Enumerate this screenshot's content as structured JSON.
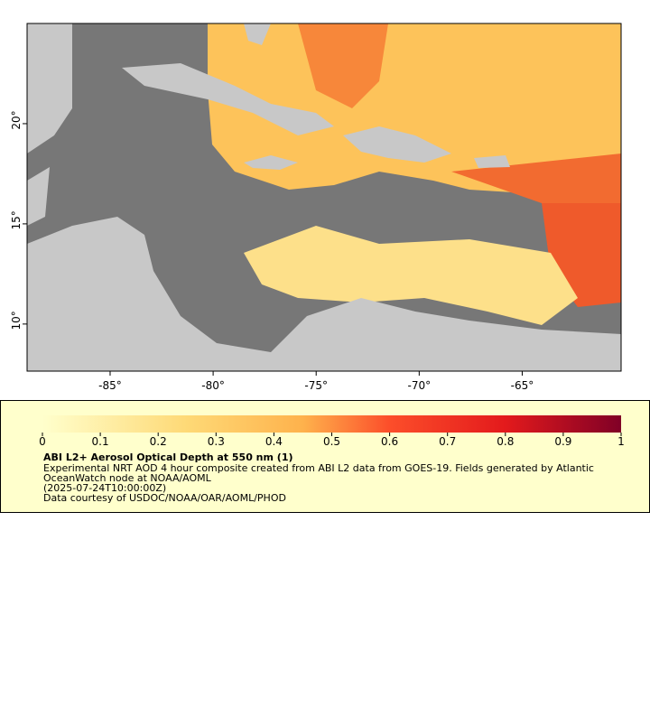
{
  "map": {
    "lon_range": [
      -89.03,
      -60.2
    ],
    "lat_range": [
      7.65,
      25.0
    ],
    "lon_ticks": [
      {
        "value": -85,
        "label": "-85°"
      },
      {
        "value": -80,
        "label": "-80°"
      },
      {
        "value": -75,
        "label": "-75°"
      },
      {
        "value": -70,
        "label": "-70°"
      },
      {
        "value": -65,
        "label": "-65°"
      }
    ],
    "lat_ticks": [
      {
        "value": 10,
        "label": "10°"
      },
      {
        "value": 15,
        "label": "15°"
      },
      {
        "value": 20,
        "label": "20°"
      }
    ]
  },
  "legend": {
    "colorbar_range": [
      0,
      1
    ],
    "colorbar_ticks": [
      0,
      0.1,
      0.2,
      0.3,
      0.4,
      0.5,
      0.6,
      0.7,
      0.8,
      0.9,
      1
    ],
    "title": "ABI L2+ Aerosol Optical Depth at 550 nm (1)",
    "description_1": "Experimental NRT AOD 4 hour composite created from ABI L2 data from GOES-19. Fields generated by Atlantic",
    "description_2": "OceanWatch node at NOAA/AOML",
    "time": "(2025-07-24T10:00:00Z)",
    "credit": "Data courtesy of USDOC/NOAA/OAR/AOML/PHOD"
  }
}
